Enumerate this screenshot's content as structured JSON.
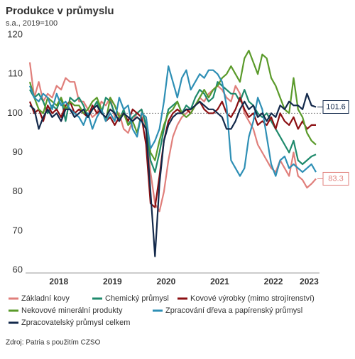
{
  "chart_data": {
    "type": "line",
    "title": "Produkce v průmyslu",
    "subtitle": "s.a., 2019=100",
    "source": "Zdroj: Patria s použitím CZSO",
    "categories": [
      null,
      null,
      null,
      null,
      null,
      null,
      "2018",
      null,
      null,
      null,
      null,
      null,
      null,
      null,
      null,
      null,
      null,
      null,
      "2019",
      null,
      null,
      null,
      null,
      null,
      null,
      null,
      null,
      null,
      null,
      null,
      "2020",
      null,
      null,
      null,
      null,
      null,
      null,
      null,
      null,
      null,
      null,
      null,
      "2021",
      null,
      null,
      null,
      null,
      null,
      null,
      null,
      null,
      null,
      null,
      null,
      "2022",
      null,
      null,
      null,
      null,
      null,
      null,
      null,
      "2023",
      null,
      null
    ],
    "ylim": [
      60,
      120
    ],
    "yticks": [
      60,
      70,
      80,
      90,
      100,
      110,
      120
    ],
    "grid": false,
    "reference_line": 100,
    "series": [
      {
        "name": "Základní kovy",
        "color": "#e07f7b",
        "end_label": true,
        "values": [
          113,
          104,
          108,
          103,
          105,
          104,
          107,
          106,
          109,
          108,
          108,
          103,
          103,
          101,
          99,
          100,
          103,
          102,
          104,
          99,
          100,
          96,
          95,
          98,
          100,
          101,
          96,
          85,
          77,
          75,
          80,
          88,
          94,
          97,
          99,
          100,
          101,
          102,
          104,
          103,
          105,
          106,
          107,
          106,
          104,
          103,
          107,
          105,
          100,
          98,
          96,
          92,
          90,
          88,
          86,
          85,
          88,
          86,
          84,
          90,
          84,
          83,
          81,
          82,
          83.3
        ]
      },
      {
        "name": "Chemický průmysl",
        "color": "#1f8a6c",
        "values": [
          106,
          104,
          105,
          103,
          100,
          102,
          101,
          104,
          98,
          104,
          103,
          104,
          102,
          99,
          101,
          103,
          100,
          104,
          103,
          100,
          98,
          101,
          97,
          99,
          100,
          101,
          97,
          88,
          85,
          90,
          96,
          101,
          102,
          103,
          100,
          102,
          101,
          104,
          106,
          105,
          103,
          104,
          108,
          107,
          106,
          105,
          105,
          103,
          106,
          103,
          102,
          100,
          99,
          100,
          98,
          96,
          94,
          92,
          90,
          93,
          88,
          87,
          88,
          89,
          89.5
        ]
      },
      {
        "name": "Kovové výrobky (mimo strojírenství)",
        "color": "#8b0f12",
        "values": [
          103,
          100,
          101,
          98,
          102,
          100,
          101,
          99,
          102,
          103,
          100,
          101,
          100,
          99,
          102,
          100,
          101,
          98,
          99,
          97,
          99,
          100,
          98,
          101,
          100,
          99,
          92,
          77,
          76,
          84,
          93,
          98,
          100,
          101,
          100,
          101,
          100,
          102,
          103,
          101,
          100,
          100,
          101,
          103,
          100,
          99,
          101,
          104,
          101,
          99,
          100,
          97,
          98,
          97,
          99,
          96,
          100,
          98,
          97,
          99,
          96,
          98,
          96,
          97,
          97
        ]
      },
      {
        "name": "Nekovové minerální produkty",
        "color": "#5a9a2a",
        "values": [
          108,
          104,
          101,
          100,
          104,
          103,
          102,
          104,
          101,
          103,
          102,
          102,
          100,
          101,
          103,
          104,
          101,
          98,
          104,
          102,
          99,
          100,
          97,
          98,
          95,
          100,
          99,
          90,
          88,
          93,
          97,
          100,
          101,
          103,
          100,
          99,
          100,
          102,
          104,
          106,
          104,
          106,
          107,
          109,
          110,
          112,
          110,
          108,
          114,
          116,
          113,
          110,
          115,
          114,
          109,
          107,
          104,
          101,
          100,
          109,
          101,
          99,
          95,
          93,
          92
        ]
      },
      {
        "name": "Zpracování dřeva a papírenský průmysl",
        "color": "#2e8fb5",
        "values": [
          107,
          104,
          103,
          105,
          104,
          101,
          105,
          102,
          103,
          101,
          100,
          99,
          97,
          100,
          96,
          99,
          101,
          98,
          100,
          98,
          104,
          101,
          102,
          96,
          94,
          100,
          99,
          91,
          93,
          96,
          103,
          112,
          108,
          104,
          109,
          111,
          106,
          108,
          110,
          109,
          111,
          111,
          110,
          108,
          102,
          88,
          86,
          84,
          86,
          94,
          98,
          104,
          101,
          94,
          87,
          84,
          88,
          89,
          86,
          87,
          86,
          85,
          86,
          87,
          85
        ]
      },
      {
        "name": "Zpracovatelský průmysl celkem",
        "color": "#13294b",
        "end_label": true,
        "values": [
          102,
          101,
          96,
          99,
          101,
          99,
          100,
          98,
          101,
          101,
          99,
          100,
          101,
          99,
          101,
          102,
          100,
          99,
          101,
          100,
          98,
          100,
          99,
          98,
          99,
          98,
          96,
          80,
          63.5,
          82,
          93,
          97,
          99,
          100,
          100,
          101,
          101,
          102,
          103,
          102,
          101,
          101,
          100,
          99,
          96,
          96,
          98,
          101,
          103,
          101,
          102,
          99,
          100,
          98,
          100,
          99,
          102,
          101,
          103,
          102,
          102,
          101,
          105,
          102,
          101.6
        ]
      }
    ]
  }
}
